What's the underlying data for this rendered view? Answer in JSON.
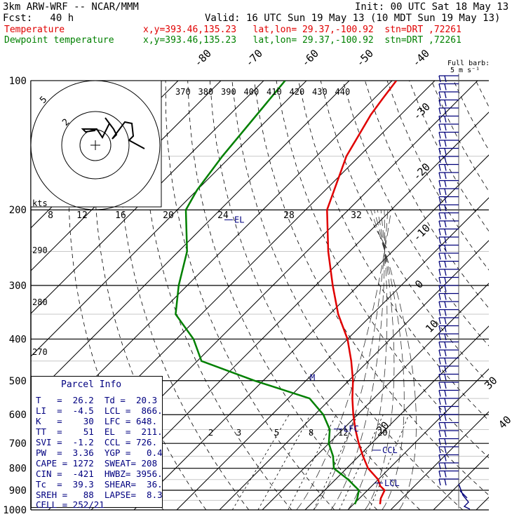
{
  "header": {
    "model": "3km ARW-WRF -- NCAR/MMM",
    "init": "Init: 00 UTC Sat 18 May 13",
    "fcst": "Fcst:   40 h",
    "valid": "Valid: 16 UTC Sun 19 May 13 (10 MDT Sun 19 May 13)",
    "temp_label": "Temperature",
    "dew_label": "Dewpoint temperature",
    "loc_temp": "x,y=393.46,135.23   lat,lon= 29.37,-100.92  stn=DRT ,72261",
    "loc_dew": "x,y=393.46,135.23   lat,lon= 29.37,-100.92  stn=DRT ,72261"
  },
  "colors": {
    "temperature": "#e00000",
    "dewpoint": "#008000",
    "info": "#000080",
    "barb": "#00007a"
  },
  "chart_data": {
    "type": "line",
    "chart_kind": "skew-T log-p sounding",
    "y_scale": "log pressure (hPa)",
    "pressure_labels": [
      "100",
      "200",
      "300",
      "400",
      "500",
      "600",
      "700",
      "800",
      "900",
      "1000"
    ],
    "isotherm_labels": [
      "-80",
      "-70",
      "-60",
      "-50",
      "-40",
      "-30",
      "-20",
      "-10",
      "0",
      "10",
      "20",
      "30",
      "40"
    ],
    "theta_labels": [
      "370",
      "380",
      "390",
      "400",
      "410",
      "420",
      "430",
      "440"
    ],
    "low_theta_labels": [
      "290",
      "280",
      "270"
    ],
    "mixing_ratio_labels": [
      "2",
      "3",
      "5",
      "8",
      "12",
      "20"
    ],
    "hodograph_speed_labels": [
      "8",
      "12",
      "16",
      "20",
      "24",
      "28",
      "32"
    ],
    "hodograph_unit": "kts",
    "hodograph_ring_labels": [
      "5",
      "2"
    ],
    "barb_legend": "Full barb:\n5 m s⁻¹",
    "level_markers": [
      "EL",
      "LFC",
      "CCL",
      "LCL",
      "M"
    ],
    "series": [
      {
        "name": "Temperature",
        "points": [
          [
            100,
            -69
          ],
          [
            110,
            -68
          ],
          [
            120,
            -67
          ],
          [
            150,
            -63
          ],
          [
            200,
            -55
          ],
          [
            250,
            -45
          ],
          [
            300,
            -36
          ],
          [
            350,
            -28
          ],
          [
            400,
            -20
          ],
          [
            450,
            -14
          ],
          [
            500,
            -9
          ],
          [
            550,
            -5
          ],
          [
            600,
            -1
          ],
          [
            650,
            3
          ],
          [
            700,
            7
          ],
          [
            750,
            11
          ],
          [
            800,
            15
          ],
          [
            850,
            20
          ],
          [
            880,
            22
          ],
          [
            900,
            24
          ],
          [
            940,
            25
          ],
          [
            970,
            26.2
          ]
        ]
      },
      {
        "name": "Dewpoint temperature",
        "points": [
          [
            100,
            -95
          ],
          [
            150,
            -92
          ],
          [
            180,
            -90
          ],
          [
            200,
            -88
          ],
          [
            250,
            -78
          ],
          [
            300,
            -72
          ],
          [
            350,
            -66
          ],
          [
            400,
            -56
          ],
          [
            450,
            -49
          ],
          [
            500,
            -32
          ],
          [
            550,
            -15
          ],
          [
            600,
            -8
          ],
          [
            650,
            -3
          ],
          [
            700,
            0
          ],
          [
            750,
            4
          ],
          [
            800,
            7
          ],
          [
            850,
            13
          ],
          [
            880,
            16
          ],
          [
            900,
            18
          ],
          [
            940,
            19.5
          ],
          [
            970,
            20.3
          ]
        ]
      }
    ]
  },
  "parcel_info": {
    "title": "Parcel Info",
    "rows": [
      "T   =  26.2  Td =  20.3",
      "LI  =  -4.5  LCL =  866.",
      "K   =    30  LFC = 648.",
      "TT  =    51  EL  =  211.",
      "SVI =  -1.2  CCL = 726.",
      "PW  =  3.36  YGP =   0.4",
      "CAPE = 1272  SWEAT= 208",
      "CIN =  -421  HWBZ= 3956.",
      "Tc  =  39.3  SHEAR=  36.",
      "SREH =   88  LAPSE=  8.3",
      "CELL = 252/21"
    ]
  }
}
